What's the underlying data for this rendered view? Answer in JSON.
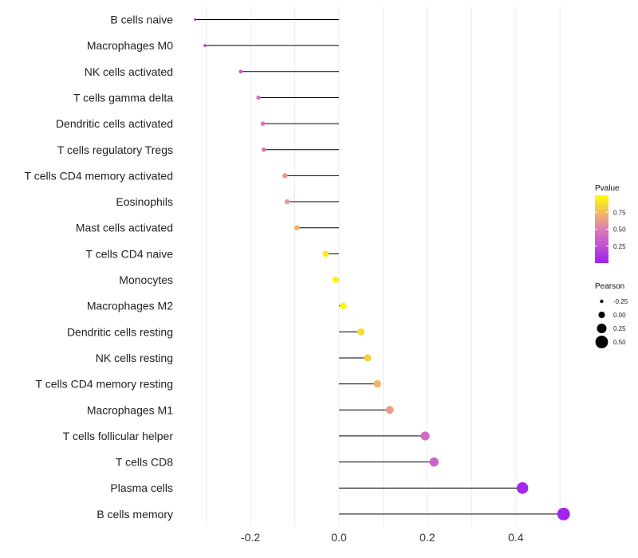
{
  "chart_data": {
    "type": "lollipop",
    "title": "",
    "xlabel": "",
    "ylabel": "",
    "xlim": [
      -0.34,
      0.52
    ],
    "x_ticks": [
      -0.2,
      0.0,
      0.2,
      0.4
    ],
    "x_tick_labels": [
      "-0.2",
      "0.0",
      "0.2",
      "0.4"
    ],
    "grid": true,
    "categories": [
      "B cells naive",
      "Macrophages M0",
      "NK cells activated",
      "T cells gamma delta",
      "Dendritic cells activated",
      "T cells regulatory  Tregs ",
      "T cells CD4 memory activated",
      "Eosinophils",
      "Mast cells activated",
      "T cells CD4 naive",
      "Monocytes",
      "Macrophages M2",
      "Dendritic cells resting",
      "NK cells resting",
      "T cells CD4 memory resting",
      "Macrophages M1",
      "T cells follicular helper",
      "T cells CD8",
      "Plasma cells",
      "B cells memory"
    ],
    "pearson": [
      -0.325,
      -0.303,
      -0.222,
      -0.182,
      -0.172,
      -0.17,
      -0.122,
      -0.117,
      -0.095,
      -0.03,
      -0.008,
      0.01,
      0.05,
      0.065,
      0.087,
      0.115,
      0.195,
      0.215,
      0.415,
      0.508
    ],
    "pvalue": [
      0.1,
      0.12,
      0.33,
      0.42,
      0.45,
      0.46,
      0.62,
      0.63,
      0.72,
      0.92,
      0.97,
      0.97,
      0.86,
      0.82,
      0.73,
      0.63,
      0.4,
      0.36,
      0.04,
      0.02
    ],
    "legend": {
      "color": {
        "title": "Pvalue",
        "ticks": [
          0.25,
          0.5,
          0.75
        ],
        "tick_labels": [
          "0.25",
          "0.50",
          "0.75"
        ],
        "range": [
          0.0,
          1.0
        ],
        "colors": {
          "low": "#A020F0",
          "mid": "#E07BB8",
          "high": "#FFFF00"
        }
      },
      "size": {
        "title": "Pearson",
        "values": [
          -0.25,
          0.0,
          0.25,
          0.5
        ],
        "labels": [
          "-0.25",
          "0.00",
          "0.25",
          "0.50"
        ]
      },
      "position": "right"
    }
  }
}
